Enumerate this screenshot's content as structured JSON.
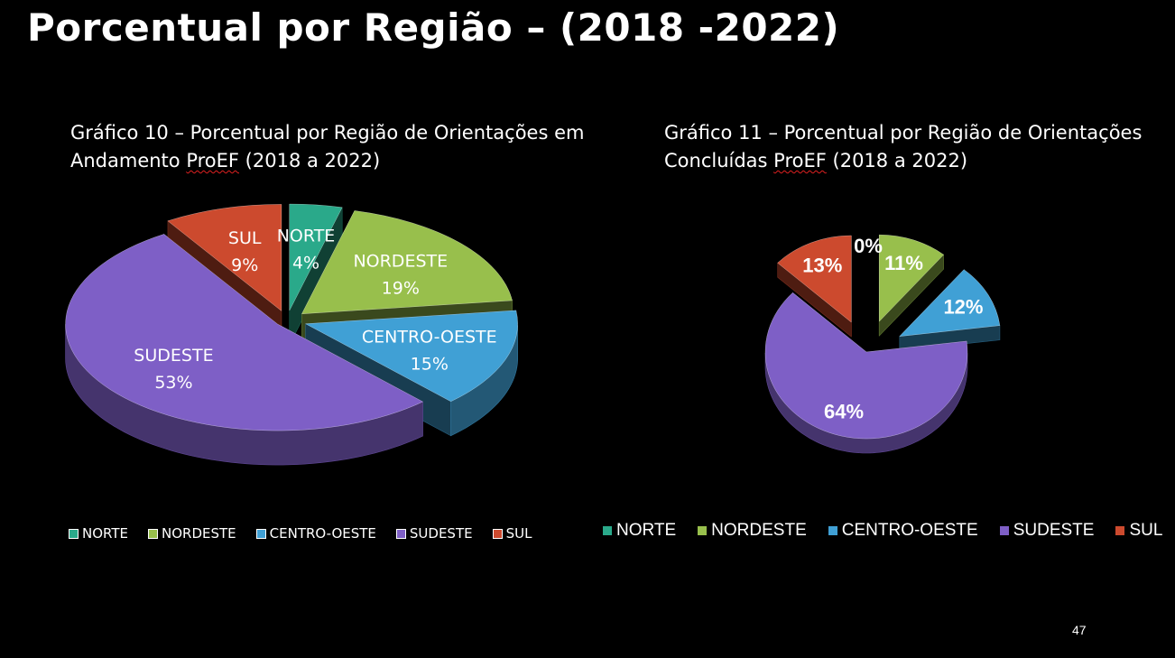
{
  "slide": {
    "title": "Porcentual por Região – (2018 -2022)",
    "page_number": "47"
  },
  "colors": {
    "NORTE": "#2aa98a",
    "NORDESTE": "#98bf4c",
    "CENTRO-OESTE": "#40a0d5",
    "SUDESTE": "#7e5fc6",
    "SUL": "#cc4a2e"
  },
  "chart_data": [
    {
      "type": "pie",
      "style": "3d-exploded",
      "title_part1": "Gráfico 10 – Porcentual por Região de Orientações em Andamento ",
      "title_part2": "ProEF",
      "title_part3": " (2018 a 2022)",
      "categories": [
        "NORTE",
        "NORDESTE",
        "CENTRO-OESTE",
        "SUDESTE",
        "SUL"
      ],
      "values": [
        4,
        19,
        15,
        53,
        9
      ],
      "value_labels": [
        "4%",
        "19%",
        "15%",
        "53%",
        "9%"
      ],
      "legend": [
        "NORTE",
        "NORDESTE",
        "CENTRO-OESTE",
        "SUDESTE",
        "SUL"
      ],
      "legend_position": "bottom"
    },
    {
      "type": "pie",
      "style": "3d-exploded",
      "title_part1": "Gráfico 11 – Porcentual por Região de Orientações Concluídas ",
      "title_part2": "ProEF",
      "title_part3": " (2018 a 2022)",
      "categories": [
        "NORTE",
        "NORDESTE",
        "CENTRO-OESTE",
        "SUDESTE",
        "SUL"
      ],
      "values": [
        0,
        11,
        12,
        64,
        13
      ],
      "value_labels": [
        "0%",
        "11%",
        "12%",
        "64%",
        "13%"
      ],
      "legend": [
        "NORTE",
        "NORDESTE",
        "CENTRO-OESTE",
        "SUDESTE",
        "SUL"
      ],
      "legend_position": "bottom"
    }
  ]
}
